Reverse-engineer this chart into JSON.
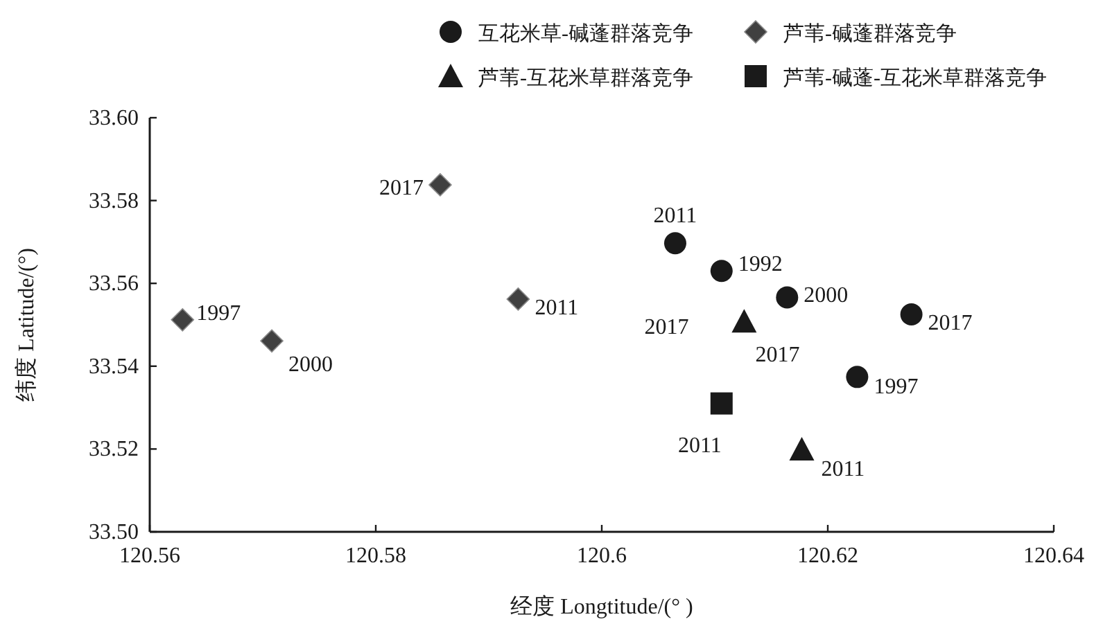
{
  "chart_data": {
    "type": "scatter",
    "xlabel": "经度 Longtitude/(° )",
    "ylabel": "纬度 Latitude/(°)",
    "xlim": [
      120.56,
      120.64
    ],
    "xticks": [
      120.56,
      120.58,
      120.6,
      120.62,
      120.64
    ],
    "ylim": [
      33.5,
      33.6
    ],
    "yticks": [
      {
        "value": 33.5,
        "label": "33.50"
      },
      {
        "value": 33.52,
        "label": "33.52"
      },
      {
        "value": 33.54,
        "label": "33.54"
      },
      {
        "value": 33.56,
        "label": "33.56"
      },
      {
        "value": 33.58,
        "label": "33.58"
      },
      {
        "value": 33.6,
        "label": "33.60"
      }
    ],
    "legend": "top",
    "grid": false,
    "series": [
      {
        "name": "互花米草-碱蓬群落竞争",
        "color": "#1a1a1a",
        "marker": "circle",
        "x": [
          120.6065,
          120.6106,
          120.6164,
          120.6274,
          120.6226
        ],
        "values": [
          33.5697,
          33.563,
          33.5566,
          33.5525,
          33.5374
        ]
      },
      {
        "name": "芦苇-碱蓬群落竞争",
        "color": "#404040",
        "marker": "diamond",
        "x": [
          120.5629,
          120.5708,
          120.5857,
          120.5926
        ],
        "values": [
          33.5512,
          33.5461,
          33.5838,
          33.5562
        ]
      },
      {
        "name": "芦苇-互花米草群落竞争",
        "color": "#1a1a1a",
        "marker": "triangle",
        "x": [
          120.6126,
          120.6177
        ],
        "values": [
          33.5508,
          33.5199
        ]
      },
      {
        "name": "芦苇-碱蓬-互花米草群落竞争",
        "color": "#1a1a1a",
        "marker": "square",
        "x": [
          120.6106
        ],
        "values": [
          33.531
        ]
      }
    ],
    "annotations": [
      {
        "text": "2011",
        "x": 120.6065,
        "y": 33.5697
      },
      {
        "text": "1992",
        "x": 120.6106,
        "y": 33.563
      },
      {
        "text": "2000",
        "x": 120.6164,
        "y": 33.5566
      },
      {
        "text": "2017",
        "x": 120.6274,
        "y": 33.5525
      },
      {
        "text": "1997",
        "x": 120.6226,
        "y": 33.5374
      },
      {
        "text": "1997",
        "x": 120.5629,
        "y": 33.5512
      },
      {
        "text": "2000",
        "x": 120.5708,
        "y": 33.5461
      },
      {
        "text": "2017",
        "x": 120.5857,
        "y": 33.5838
      },
      {
        "text": "2011",
        "x": 120.5926,
        "y": 33.5562
      },
      {
        "text": "2017",
        "x": 120.6126,
        "y": 33.5508
      },
      {
        "text": "2017",
        "x": 120.6126,
        "y": 33.5508
      },
      {
        "text": "2011",
        "x": 120.6177,
        "y": 33.5199
      },
      {
        "text": "2011",
        "x": 120.6106,
        "y": 33.531
      }
    ]
  }
}
